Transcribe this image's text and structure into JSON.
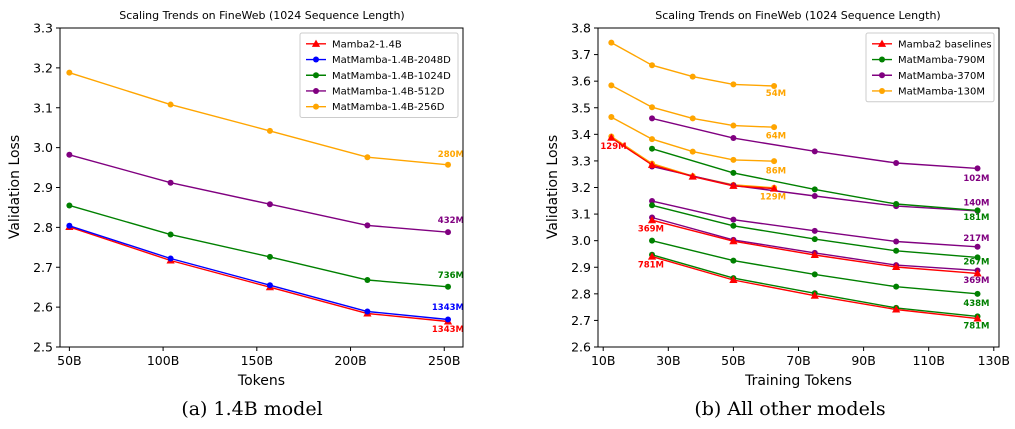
{
  "captions": [
    "(a) 1.4B model",
    "(b) All other models"
  ],
  "chart_data": [
    {
      "type": "line",
      "title": "Scaling Trends on FineWeb (1024 Sequence Length)",
      "xlabel": "Tokens",
      "ylabel": "Validation Loss",
      "xlim": [
        45,
        260
      ],
      "ylim": [
        2.5,
        3.3
      ],
      "xticks": [
        50,
        100,
        150,
        200,
        250
      ],
      "xtick_labels": [
        "50B",
        "100B",
        "150B",
        "200B",
        "250B"
      ],
      "yticks": [
        2.5,
        2.6,
        2.7,
        2.8,
        2.9,
        3.0,
        3.1,
        3.2,
        3.3
      ],
      "ytick_labels": [
        "2.5",
        "2.6",
        "2.7",
        "2.8",
        "2.9",
        "3.0",
        "3.1",
        "3.2",
        "3.3"
      ],
      "legend": "top-right",
      "grid": false,
      "series": [
        {
          "name": "Mamba2-1.4B",
          "color": "#ff0000",
          "marker": "triangle",
          "points": [
            [
              50,
              2.801
            ],
            [
              104,
              2.717
            ],
            [
              157,
              2.65
            ],
            [
              209,
              2.584
            ],
            [
              252,
              2.564
            ]
          ]
        },
        {
          "name": "MatMamba-1.4B-2048D",
          "color": "#0000ff",
          "marker": "circle",
          "points": [
            [
              50,
              2.804
            ],
            [
              104,
              2.722
            ],
            [
              157,
              2.655
            ],
            [
              209,
              2.589
            ],
            [
              252,
              2.569
            ]
          ]
        },
        {
          "name": "MatMamba-1.4B-1024D",
          "color": "#008000",
          "marker": "circle",
          "points": [
            [
              50,
              2.855
            ],
            [
              104,
              2.782
            ],
            [
              157,
              2.726
            ],
            [
              209,
              2.668
            ],
            [
              252,
              2.651
            ]
          ]
        },
        {
          "name": "MatMamba-1.4B-512D",
          "color": "#800080",
          "marker": "circle",
          "points": [
            [
              50,
              2.982
            ],
            [
              104,
              2.912
            ],
            [
              157,
              2.858
            ],
            [
              209,
              2.805
            ],
            [
              252,
              2.788
            ]
          ]
        },
        {
          "name": "MatMamba-1.4B-256D",
          "color": "#ffa500",
          "marker": "circle",
          "points": [
            [
              50,
              3.188
            ],
            [
              104,
              3.108
            ],
            [
              157,
              3.042
            ],
            [
              209,
              2.976
            ],
            [
              252,
              2.957
            ]
          ]
        }
      ],
      "annotations": [
        {
          "text": "280M",
          "color": "#ffa500",
          "x": 252,
          "y": 2.977
        },
        {
          "text": "432M",
          "color": "#800080",
          "x": 252,
          "y": 2.811
        },
        {
          "text": "736M",
          "color": "#008000",
          "x": 252,
          "y": 2.673
        },
        {
          "text": "1343M",
          "color": "#0000ff",
          "x": 252,
          "y": 2.593
        },
        {
          "text": "1343M",
          "color": "#ff0000",
          "x": 252,
          "y": 2.537
        }
      ]
    },
    {
      "type": "line",
      "title": "Scaling Trends on FineWeb (1024 Sequence Length)",
      "xlabel": "Training Tokens",
      "ylabel": "Validation Loss",
      "xlim": [
        8.4,
        131.6
      ],
      "ylim": [
        2.6,
        3.8
      ],
      "xticks": [
        10,
        30,
        50,
        70,
        90,
        110,
        130
      ],
      "xtick_labels": [
        "10B",
        "30B",
        "50B",
        "70B",
        "90B",
        "110B",
        "130B"
      ],
      "yticks": [
        2.6,
        2.7,
        2.8,
        2.9,
        3.0,
        3.1,
        3.2,
        3.3,
        3.4,
        3.5,
        3.6,
        3.7,
        3.8
      ],
      "ytick_labels": [
        "2.6",
        "2.7",
        "2.8",
        "2.9",
        "3.0",
        "3.1",
        "3.2",
        "3.3",
        "3.4",
        "3.5",
        "3.6",
        "3.7",
        "3.8"
      ],
      "legend": "top-right",
      "grid": false,
      "legend_entries": [
        {
          "name": "Mamba2 baselines",
          "color": "#ff0000",
          "marker": "triangle"
        },
        {
          "name": "MatMamba-790M",
          "color": "#008000",
          "marker": "circle"
        },
        {
          "name": "MatMamba-370M",
          "color": "#800080",
          "marker": "circle"
        },
        {
          "name": "MatMamba-130M",
          "color": "#ffa500",
          "marker": "circle"
        }
      ],
      "series": [
        {
          "color": "#ffa500",
          "marker": "circle",
          "points": [
            [
              12.5,
              3.745
            ],
            [
              25,
              3.66
            ],
            [
              37.5,
              3.617
            ],
            [
              50,
              3.588
            ],
            [
              62.5,
              3.582
            ]
          ]
        },
        {
          "color": "#ffa500",
          "marker": "circle",
          "points": [
            [
              12.5,
              3.584
            ],
            [
              25,
              3.502
            ],
            [
              37.5,
              3.46
            ],
            [
              50,
              3.433
            ],
            [
              62.5,
              3.427
            ]
          ]
        },
        {
          "color": "#ffa500",
          "marker": "circle",
          "points": [
            [
              12.5,
              3.465
            ],
            [
              25,
              3.382
            ],
            [
              37.5,
              3.335
            ],
            [
              50,
              3.304
            ],
            [
              62.5,
              3.299
            ]
          ]
        },
        {
          "color": "#ffa500",
          "marker": "circle",
          "points": [
            [
              12.5,
              3.392
            ],
            [
              25,
              3.29
            ],
            [
              37.5,
              3.243
            ],
            [
              50,
              3.21
            ],
            [
              62.5,
              3.199
            ]
          ]
        },
        {
          "color": "#800080",
          "marker": "circle",
          "points": [
            [
              25,
              3.46
            ],
            [
              50,
              3.386
            ],
            [
              75,
              3.336
            ],
            [
              100,
              3.292
            ],
            [
              125,
              3.272
            ]
          ]
        },
        {
          "color": "#800080",
          "marker": "circle",
          "points": [
            [
              25,
              3.279
            ],
            [
              50,
              3.208
            ],
            [
              75,
              3.168
            ],
            [
              100,
              3.13
            ],
            [
              125,
              3.112
            ]
          ]
        },
        {
          "color": "#800080",
          "marker": "circle",
          "points": [
            [
              25,
              3.149
            ],
            [
              50,
              3.079
            ],
            [
              75,
              3.037
            ],
            [
              100,
              2.997
            ],
            [
              125,
              2.977
            ]
          ]
        },
        {
          "color": "#800080",
          "marker": "circle",
          "points": [
            [
              25,
              3.087
            ],
            [
              50,
              3.003
            ],
            [
              75,
              2.954
            ],
            [
              100,
              2.908
            ],
            [
              125,
              2.888
            ]
          ]
        },
        {
          "color": "#008000",
          "marker": "circle",
          "points": [
            [
              25,
              3.346
            ],
            [
              50,
              3.255
            ],
            [
              75,
              3.193
            ],
            [
              100,
              3.138
            ],
            [
              125,
              3.114
            ]
          ]
        },
        {
          "color": "#008000",
          "marker": "circle",
          "points": [
            [
              25,
              3.133
            ],
            [
              50,
              3.056
            ],
            [
              75,
              3.006
            ],
            [
              100,
              2.962
            ],
            [
              125,
              2.937
            ]
          ]
        },
        {
          "color": "#008000",
          "marker": "circle",
          "points": [
            [
              25,
              3.0
            ],
            [
              50,
              2.925
            ],
            [
              75,
              2.873
            ],
            [
              100,
              2.827
            ],
            [
              125,
              2.8
            ]
          ]
        },
        {
          "color": "#008000",
          "marker": "circle",
          "points": [
            [
              25,
              2.947
            ],
            [
              50,
              2.859
            ],
            [
              75,
              2.802
            ],
            [
              100,
              2.747
            ],
            [
              125,
              2.715
            ]
          ]
        },
        {
          "color": "#ff0000",
          "marker": "triangle",
          "points": [
            [
              12.5,
              3.387
            ],
            [
              25,
              3.285
            ],
            [
              37.5,
              3.241
            ],
            [
              50,
              3.206
            ],
            [
              62.5,
              3.196
            ]
          ]
        },
        {
          "color": "#ff0000",
          "marker": "triangle",
          "points": [
            [
              25,
              3.077
            ],
            [
              50,
              2.998
            ],
            [
              75,
              2.946
            ],
            [
              100,
              2.901
            ],
            [
              125,
              2.877
            ]
          ]
        },
        {
          "color": "#ff0000",
          "marker": "triangle",
          "points": [
            [
              25,
              2.94
            ],
            [
              50,
              2.852
            ],
            [
              75,
              2.793
            ],
            [
              100,
              2.741
            ],
            [
              125,
              2.707
            ]
          ]
        }
      ],
      "annotations": [
        {
          "text": "54M",
          "color": "#ffa500",
          "x": 62.5,
          "y": 3.545
        },
        {
          "text": "64M",
          "color": "#ffa500",
          "x": 62.5,
          "y": 3.385
        },
        {
          "text": "86M",
          "color": "#ffa500",
          "x": 62.5,
          "y": 3.253
        },
        {
          "text": "129M",
          "color": "#ffa500",
          "x": 62.5,
          "y": 3.155
        },
        {
          "text": "129M",
          "color": "#ff0000",
          "x": 13.5,
          "y": 3.345
        },
        {
          "text": "369M",
          "color": "#ff0000",
          "x": 25,
          "y": 3.035
        },
        {
          "text": "781M",
          "color": "#ff0000",
          "x": 25,
          "y": 2.9
        },
        {
          "text": "102M",
          "color": "#800080",
          "x": 125,
          "y": 3.225
        },
        {
          "text": "140M",
          "color": "#800080",
          "x": 125,
          "y": 3.133
        },
        {
          "text": "181M",
          "color": "#008000",
          "x": 125,
          "y": 3.077
        },
        {
          "text": "217M",
          "color": "#800080",
          "x": 125,
          "y": 2.998
        },
        {
          "text": "267M",
          "color": "#008000",
          "x": 125,
          "y": 2.91
        },
        {
          "text": "369M",
          "color": "#800080",
          "x": 125,
          "y": 2.84
        },
        {
          "text": "438M",
          "color": "#008000",
          "x": 125,
          "y": 2.755
        },
        {
          "text": "781M",
          "color": "#008000",
          "x": 125,
          "y": 2.67
        }
      ]
    }
  ]
}
